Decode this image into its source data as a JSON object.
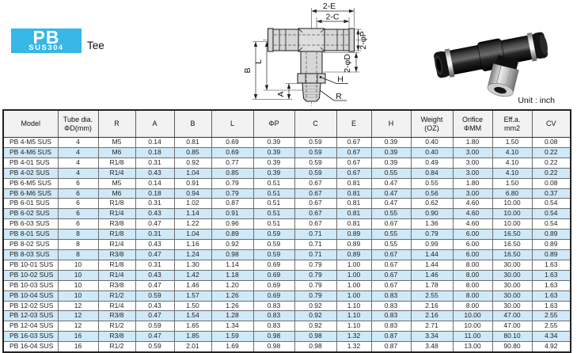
{
  "logo": {
    "series": "PB",
    "material": "SUS304",
    "type_label": "Tee"
  },
  "unit_label": "Unit : inch",
  "colors": {
    "accent": "#36b7e6",
    "row_alt": "#cfe9f8",
    "header_bg": "#f2f2f2"
  },
  "diagram_labels": {
    "e": "2-E",
    "c": "2-C",
    "p": "2-φP",
    "d": "2-φD",
    "b": "B",
    "l": "L",
    "a": "A",
    "h": "H",
    "r": "R"
  },
  "table": {
    "headers": [
      {
        "lines": [
          "Model"
        ]
      },
      {
        "lines": [
          "Tube dia.",
          "ΦD(mm)"
        ]
      },
      {
        "lines": [
          "R"
        ]
      },
      {
        "lines": [
          "A"
        ]
      },
      {
        "lines": [
          "B"
        ]
      },
      {
        "lines": [
          "L"
        ]
      },
      {
        "lines": [
          "ΦP"
        ]
      },
      {
        "lines": [
          "C"
        ]
      },
      {
        "lines": [
          "E"
        ]
      },
      {
        "lines": [
          "H"
        ]
      },
      {
        "lines": [
          "Weight",
          "(OZ)"
        ]
      },
      {
        "lines": [
          "Orifice",
          "ΦMM"
        ]
      },
      {
        "lines": [
          "Eff.a.",
          "mm2"
        ]
      },
      {
        "lines": [
          "CV"
        ]
      }
    ],
    "rows": [
      [
        "PB 4-M5 SUS",
        "4",
        "M5",
        "0.14",
        "0.81",
        "0.69",
        "0.39",
        "0.59",
        "0.67",
        "0.39",
        "0.40",
        "1.80",
        "1.50",
        "0.08"
      ],
      [
        "PB 4-M6 SUS",
        "4",
        "M6",
        "0.18",
        "0.85",
        "0.69",
        "0.39",
        "0.59",
        "0.67",
        "0.39",
        "0.40",
        "3.00",
        "4.10",
        "0.22"
      ],
      [
        "PB 4-01 SUS",
        "4",
        "R1/8",
        "0.31",
        "0.92",
        "0.77",
        "0.39",
        "0.59",
        "0.67",
        "0.39",
        "0.49",
        "3.00",
        "4.10",
        "0.22"
      ],
      [
        "PB 4-02 SUS",
        "4",
        "R1/4",
        "0.43",
        "1.04",
        "0.85",
        "0.39",
        "0.59",
        "0.67",
        "0.55",
        "0.84",
        "3.00",
        "4.10",
        "0.22"
      ],
      [
        "PB 6-M5 SUS",
        "6",
        "M5",
        "0.14",
        "0.91",
        "0.79",
        "0.51",
        "0.67",
        "0.81",
        "0.47",
        "0.55",
        "1.80",
        "1.50",
        "0.08"
      ],
      [
        "PB 6-M6 SUS",
        "6",
        "M6",
        "0.18",
        "0.94",
        "0.79",
        "0.51",
        "0.67",
        "0.81",
        "0.47",
        "0.56",
        "3.00",
        "6.80",
        "0.37"
      ],
      [
        "PB 6-01 SUS",
        "6",
        "R1/8",
        "0.31",
        "1.02",
        "0.87",
        "0.51",
        "0.67",
        "0.81",
        "0.47",
        "0.62",
        "4.60",
        "10.00",
        "0.54"
      ],
      [
        "PB 6-02 SUS",
        "6",
        "R1/4",
        "0.43",
        "1.14",
        "0.91",
        "0.51",
        "0.67",
        "0.81",
        "0.55",
        "0.90",
        "4.60",
        "10.00",
        "0.54"
      ],
      [
        "PB 6-03 SUS",
        "6",
        "R3/8",
        "0.47",
        "1.22",
        "0.96",
        "0.51",
        "0.67",
        "0.81",
        "0.67",
        "1.36",
        "4.60",
        "10.00",
        "0.54"
      ],
      [
        "PB 8-01 SUS",
        "8",
        "R1/8",
        "0.31",
        "1.04",
        "0.89",
        "0.59",
        "0.71",
        "0.89",
        "0.55",
        "0.79",
        "6.00",
        "16.50",
        "0.89"
      ],
      [
        "PB 8-02 SUS",
        "8",
        "R1/4",
        "0.43",
        "1.16",
        "0.92",
        "0.59",
        "0.71",
        "0.89",
        "0.55",
        "0.99",
        "6.00",
        "16.50",
        "0.89"
      ],
      [
        "PB 8-03 SUS",
        "8",
        "R3/8",
        "0.47",
        "1.24",
        "0.98",
        "0.59",
        "0.71",
        "0.89",
        "0.67",
        "1.44",
        "6.00",
        "16.50",
        "0.89"
      ],
      [
        "PB 10-01 SUS",
        "10",
        "R1/8",
        "0.31",
        "1.30",
        "1.14",
        "0.69",
        "0.79",
        "1.00",
        "0.67",
        "1.44",
        "8.00",
        "30.00",
        "1.63"
      ],
      [
        "PB 10-02 SUS",
        "10",
        "R1/4",
        "0.43",
        "1.42",
        "1.18",
        "0.69",
        "0.79",
        "1.00",
        "0.67",
        "1.46",
        "8.00",
        "30.00",
        "1.63"
      ],
      [
        "PB 10-03 SUS",
        "10",
        "R3/8",
        "0.47",
        "1.46",
        "1.20",
        "0.69",
        "0.79",
        "1.00",
        "0.67",
        "1.78",
        "8.00",
        "30.00",
        "1.63"
      ],
      [
        "PB 10-04 SUS",
        "10",
        "R1/2",
        "0.59",
        "1.57",
        "1.26",
        "0.69",
        "0.79",
        "1.00",
        "0.83",
        "2.55",
        "8.00",
        "30.00",
        "1.63"
      ],
      [
        "PB 12-02 SUS",
        "12",
        "R1/4",
        "0.43",
        "1.50",
        "1.26",
        "0.83",
        "0.92",
        "1.10",
        "0.83",
        "2.16",
        "8.00",
        "30.00",
        "1.63"
      ],
      [
        "PB 12-03 SUS",
        "12",
        "R3/8",
        "0.47",
        "1.54",
        "1.28",
        "0.83",
        "0.92",
        "1.10",
        "0.83",
        "2.16",
        "10.00",
        "47.00",
        "2.55"
      ],
      [
        "PB 12-04 SUS",
        "12",
        "R1/2",
        "0.59",
        "1.65",
        "1.34",
        "0.83",
        "0.92",
        "1.10",
        "0.83",
        "2.71",
        "10.00",
        "47.00",
        "2.55"
      ],
      [
        "PB 16-03 SUS",
        "16",
        "R3/8",
        "0.47",
        "1.85",
        "1.59",
        "0.98",
        "0.98",
        "1.32",
        "0.87",
        "3.34",
        "11.00",
        "80.10",
        "4.34"
      ],
      [
        "PB 16-04 SUS",
        "16",
        "R1/2",
        "0.59",
        "2.01",
        "1.69",
        "0.98",
        "0.98",
        "1.32",
        "0.87",
        "3.48",
        "13.00",
        "90.80",
        "4.92"
      ]
    ]
  }
}
